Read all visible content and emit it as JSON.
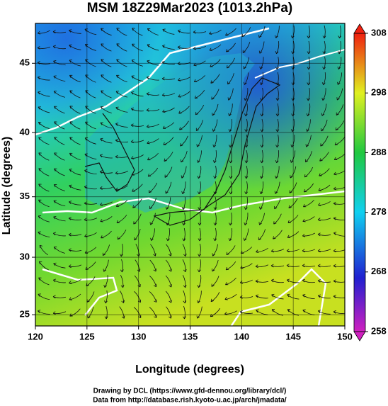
{
  "chart_data": {
    "type": "map",
    "title": "MSM 18Z29Mar2023 (1013.2hPa)",
    "x_label": "Longitude (degrees)",
    "y_label": "Latitude  (degrees)",
    "xlim": [
      120,
      150
    ],
    "xticks": [
      120,
      125,
      130,
      135,
      140,
      145,
      150
    ],
    "ylim": [
      24,
      47.7
    ],
    "yticks": [
      25,
      30,
      35,
      40,
      45
    ],
    "colorbar": {
      "lim": [
        258,
        308
      ],
      "ticks": [
        258,
        268,
        278,
        288,
        298,
        308
      ]
    },
    "credits": [
      "Drawing by DCL (https://www.gfd-dennou.org/library/dcl/)",
      "Data from http://database.rish.kyoto-u.ac.jp/arch/jmadata/"
    ]
  }
}
